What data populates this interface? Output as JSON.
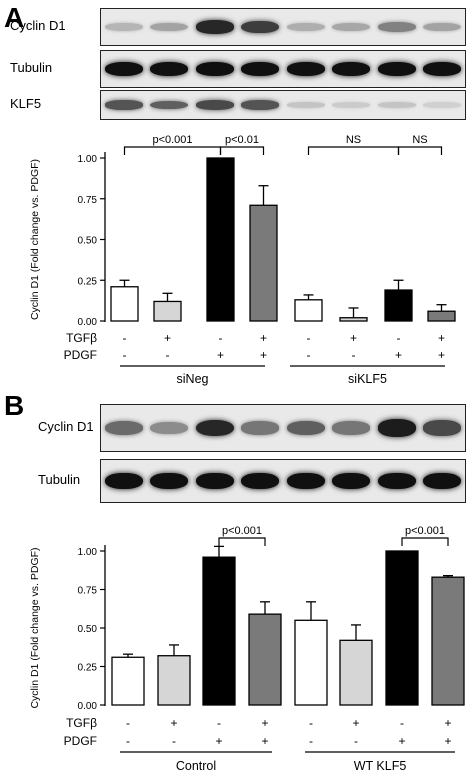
{
  "panel_a": {
    "letter": "A",
    "blots": [
      {
        "label": "Cyclin D1",
        "intensities": [
          0.22,
          0.3,
          0.85,
          0.75,
          0.25,
          0.28,
          0.45,
          0.3
        ]
      },
      {
        "label": "Tubulin",
        "intensities": [
          0.95,
          0.95,
          0.95,
          0.95,
          0.95,
          0.95,
          0.95,
          0.95
        ]
      },
      {
        "label": "KLF5",
        "intensities": [
          0.65,
          0.6,
          0.7,
          0.65,
          0.15,
          0.12,
          0.15,
          0.1
        ]
      }
    ]
  },
  "panel_b": {
    "letter": "B",
    "blots": [
      {
        "label": "Cyclin D1",
        "intensities": [
          0.55,
          0.4,
          0.85,
          0.5,
          0.6,
          0.5,
          0.9,
          0.7
        ]
      },
      {
        "label": "Tubulin",
        "intensities": [
          0.95,
          0.95,
          0.95,
          0.95,
          0.95,
          0.95,
          0.95,
          0.95
        ]
      }
    ]
  },
  "colors": {
    "bar_fills": [
      "#ffffff",
      "#d6d6d6",
      "#000000",
      "#7a7a7a"
    ]
  },
  "chart_data": [
    {
      "type": "bar",
      "ylabel": "Cyclin D1 (Fold change vs. PDGF)",
      "ylim": [
        0,
        1.0
      ],
      "yticks": [
        "0.00",
        "0.25",
        "0.50",
        "0.75",
        "1.00"
      ],
      "values": [
        0.21,
        0.12,
        1.0,
        0.71,
        0.13,
        0.02,
        0.19,
        0.06
      ],
      "errors": [
        0.04,
        0.05,
        0.0,
        0.12,
        0.03,
        0.06,
        0.06,
        0.04
      ],
      "row_labels": [
        "TGFβ",
        "PDGF"
      ],
      "tgfb": [
        "-",
        "+",
        "-",
        "+",
        "-",
        "+",
        "-",
        "+"
      ],
      "pdgf": [
        "-",
        "-",
        "+",
        "+",
        "-",
        "-",
        "+",
        "+"
      ],
      "groups": [
        "siNeg",
        "siKLF5"
      ],
      "annotations": [
        "p<0.001",
        "p<0.01",
        "NS",
        "NS"
      ]
    },
    {
      "type": "bar",
      "ylabel": "Cyclin D1 (Fold change vs. PDGF)",
      "ylim": [
        0,
        1.0
      ],
      "yticks": [
        "0.00",
        "0.25",
        "0.50",
        "0.75",
        "1.00"
      ],
      "values": [
        0.31,
        0.32,
        0.96,
        0.59,
        0.55,
        0.42,
        1.0,
        0.83
      ],
      "errors": [
        0.02,
        0.07,
        0.07,
        0.08,
        0.12,
        0.1,
        0.0,
        0.01
      ],
      "row_labels": [
        "TGFβ",
        "PDGF"
      ],
      "tgfb": [
        "-",
        "+",
        "-",
        "+",
        "-",
        "+",
        "-",
        "+"
      ],
      "pdgf": [
        "-",
        "-",
        "+",
        "+",
        "-",
        "-",
        "+",
        "+"
      ],
      "groups": [
        "Control",
        "WT KLF5"
      ],
      "annotations": [
        "p<0.001",
        "p<0.001"
      ]
    }
  ]
}
